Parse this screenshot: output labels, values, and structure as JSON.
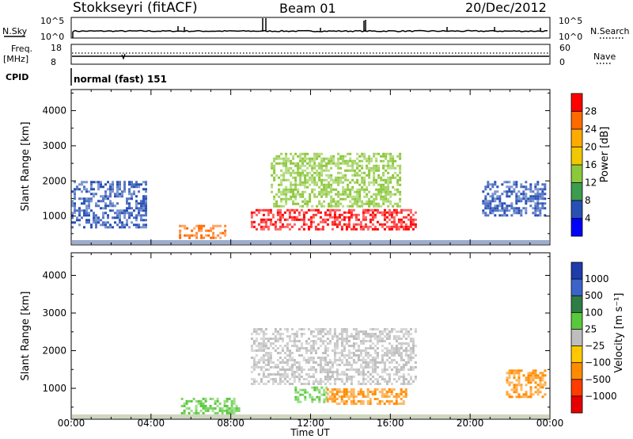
{
  "header": {
    "station": "Stokkseyri (fitACF)",
    "beam": "Beam 01",
    "date": "20/Dec/2012"
  },
  "top_panels": {
    "nsky_label": "N.Sky",
    "nsearch_label": "N.Search",
    "nsky_ticks": [
      "10^5",
      "10^0"
    ],
    "nsearch_ticks": [
      "10^5",
      "10^0"
    ],
    "freq_label": "Freq.",
    "freq_unit": "[MHz]",
    "freq_ticks": [
      "18",
      "8"
    ],
    "nave_label": "Nave",
    "nave_ticks": [
      "60",
      "0"
    ],
    "cpid_label": "CPID",
    "cpid_text": "normal (fast) 151"
  },
  "chart_data": [
    {
      "type": "heatmap",
      "panel": "power",
      "ylabel": "Slant Range [km]",
      "xlabel": "Time UT",
      "x_ticks": [
        "00:00",
        "04:00",
        "08:00",
        "12:00",
        "16:00",
        "20:00",
        "00:00"
      ],
      "y_ticks": [
        1000,
        2000,
        3000,
        4000
      ],
      "xlim": [
        0,
        24
      ],
      "ylim": [
        180,
        4600
      ],
      "colorbar": {
        "label": "Power [dB]",
        "ticks": [
          "28",
          "24",
          "20",
          "16",
          "12",
          "8",
          "4"
        ],
        "colors": [
          "#ff0000",
          "#ff6a00",
          "#ffaa00",
          "#f0c800",
          "#8cc83c",
          "#3c9c50",
          "#2850b4",
          "#0000ff"
        ]
      },
      "regions": [
        {
          "t0": 0.0,
          "t1": 3.8,
          "r0": 700,
          "r1": 2000,
          "color": "#2850b4"
        },
        {
          "t0": 5.4,
          "t1": 7.7,
          "r0": 350,
          "r1": 750,
          "color": "#ff6a00"
        },
        {
          "t0": 9.0,
          "t1": 17.3,
          "r0": 600,
          "r1": 1200,
          "color": "#ff0000"
        },
        {
          "t0": 10.0,
          "t1": 16.5,
          "r0": 1300,
          "r1": 2800,
          "color": "#8cc83c"
        },
        {
          "t0": 20.6,
          "t1": 23.8,
          "r0": 1000,
          "r1": 2000,
          "color": "#2850b4"
        }
      ]
    },
    {
      "type": "heatmap",
      "panel": "velocity",
      "ylabel": "Slant Range [km]",
      "xlabel": "Time UT",
      "x_ticks": [
        "00:00",
        "04:00",
        "08:00",
        "12:00",
        "16:00",
        "20:00",
        "00:00"
      ],
      "y_ticks": [
        1000,
        2000,
        3000,
        4000
      ],
      "xlim": [
        0,
        24
      ],
      "ylim": [
        180,
        4600
      ],
      "colorbar": {
        "label": "Velocity [m s⁻¹]",
        "ticks": [
          "1000",
          "500",
          "100",
          "25",
          "−25",
          "−100",
          "−500",
          "−1000"
        ],
        "colors": [
          "#1e3caa",
          "#3c64c8",
          "#2e7d46",
          "#5ac83c",
          "#bebebe",
          "#ffc800",
          "#ff8c00",
          "#ff3c00",
          "#e60000"
        ]
      },
      "regions": [
        {
          "t0": 9.0,
          "t1": 17.3,
          "r0": 1100,
          "r1": 2600,
          "color": "#bebebe"
        },
        {
          "t0": 5.5,
          "t1": 8.4,
          "r0": 350,
          "r1": 750,
          "color": "#5ac83c"
        },
        {
          "t0": 11.2,
          "t1": 12.8,
          "r0": 650,
          "r1": 1050,
          "color": "#5ac83c"
        },
        {
          "t0": 12.8,
          "t1": 16.8,
          "r0": 600,
          "r1": 1000,
          "color": "#ff8c00"
        },
        {
          "t0": 21.8,
          "t1": 23.8,
          "r0": 800,
          "r1": 1500,
          "color": "#ff8c00"
        }
      ]
    }
  ]
}
